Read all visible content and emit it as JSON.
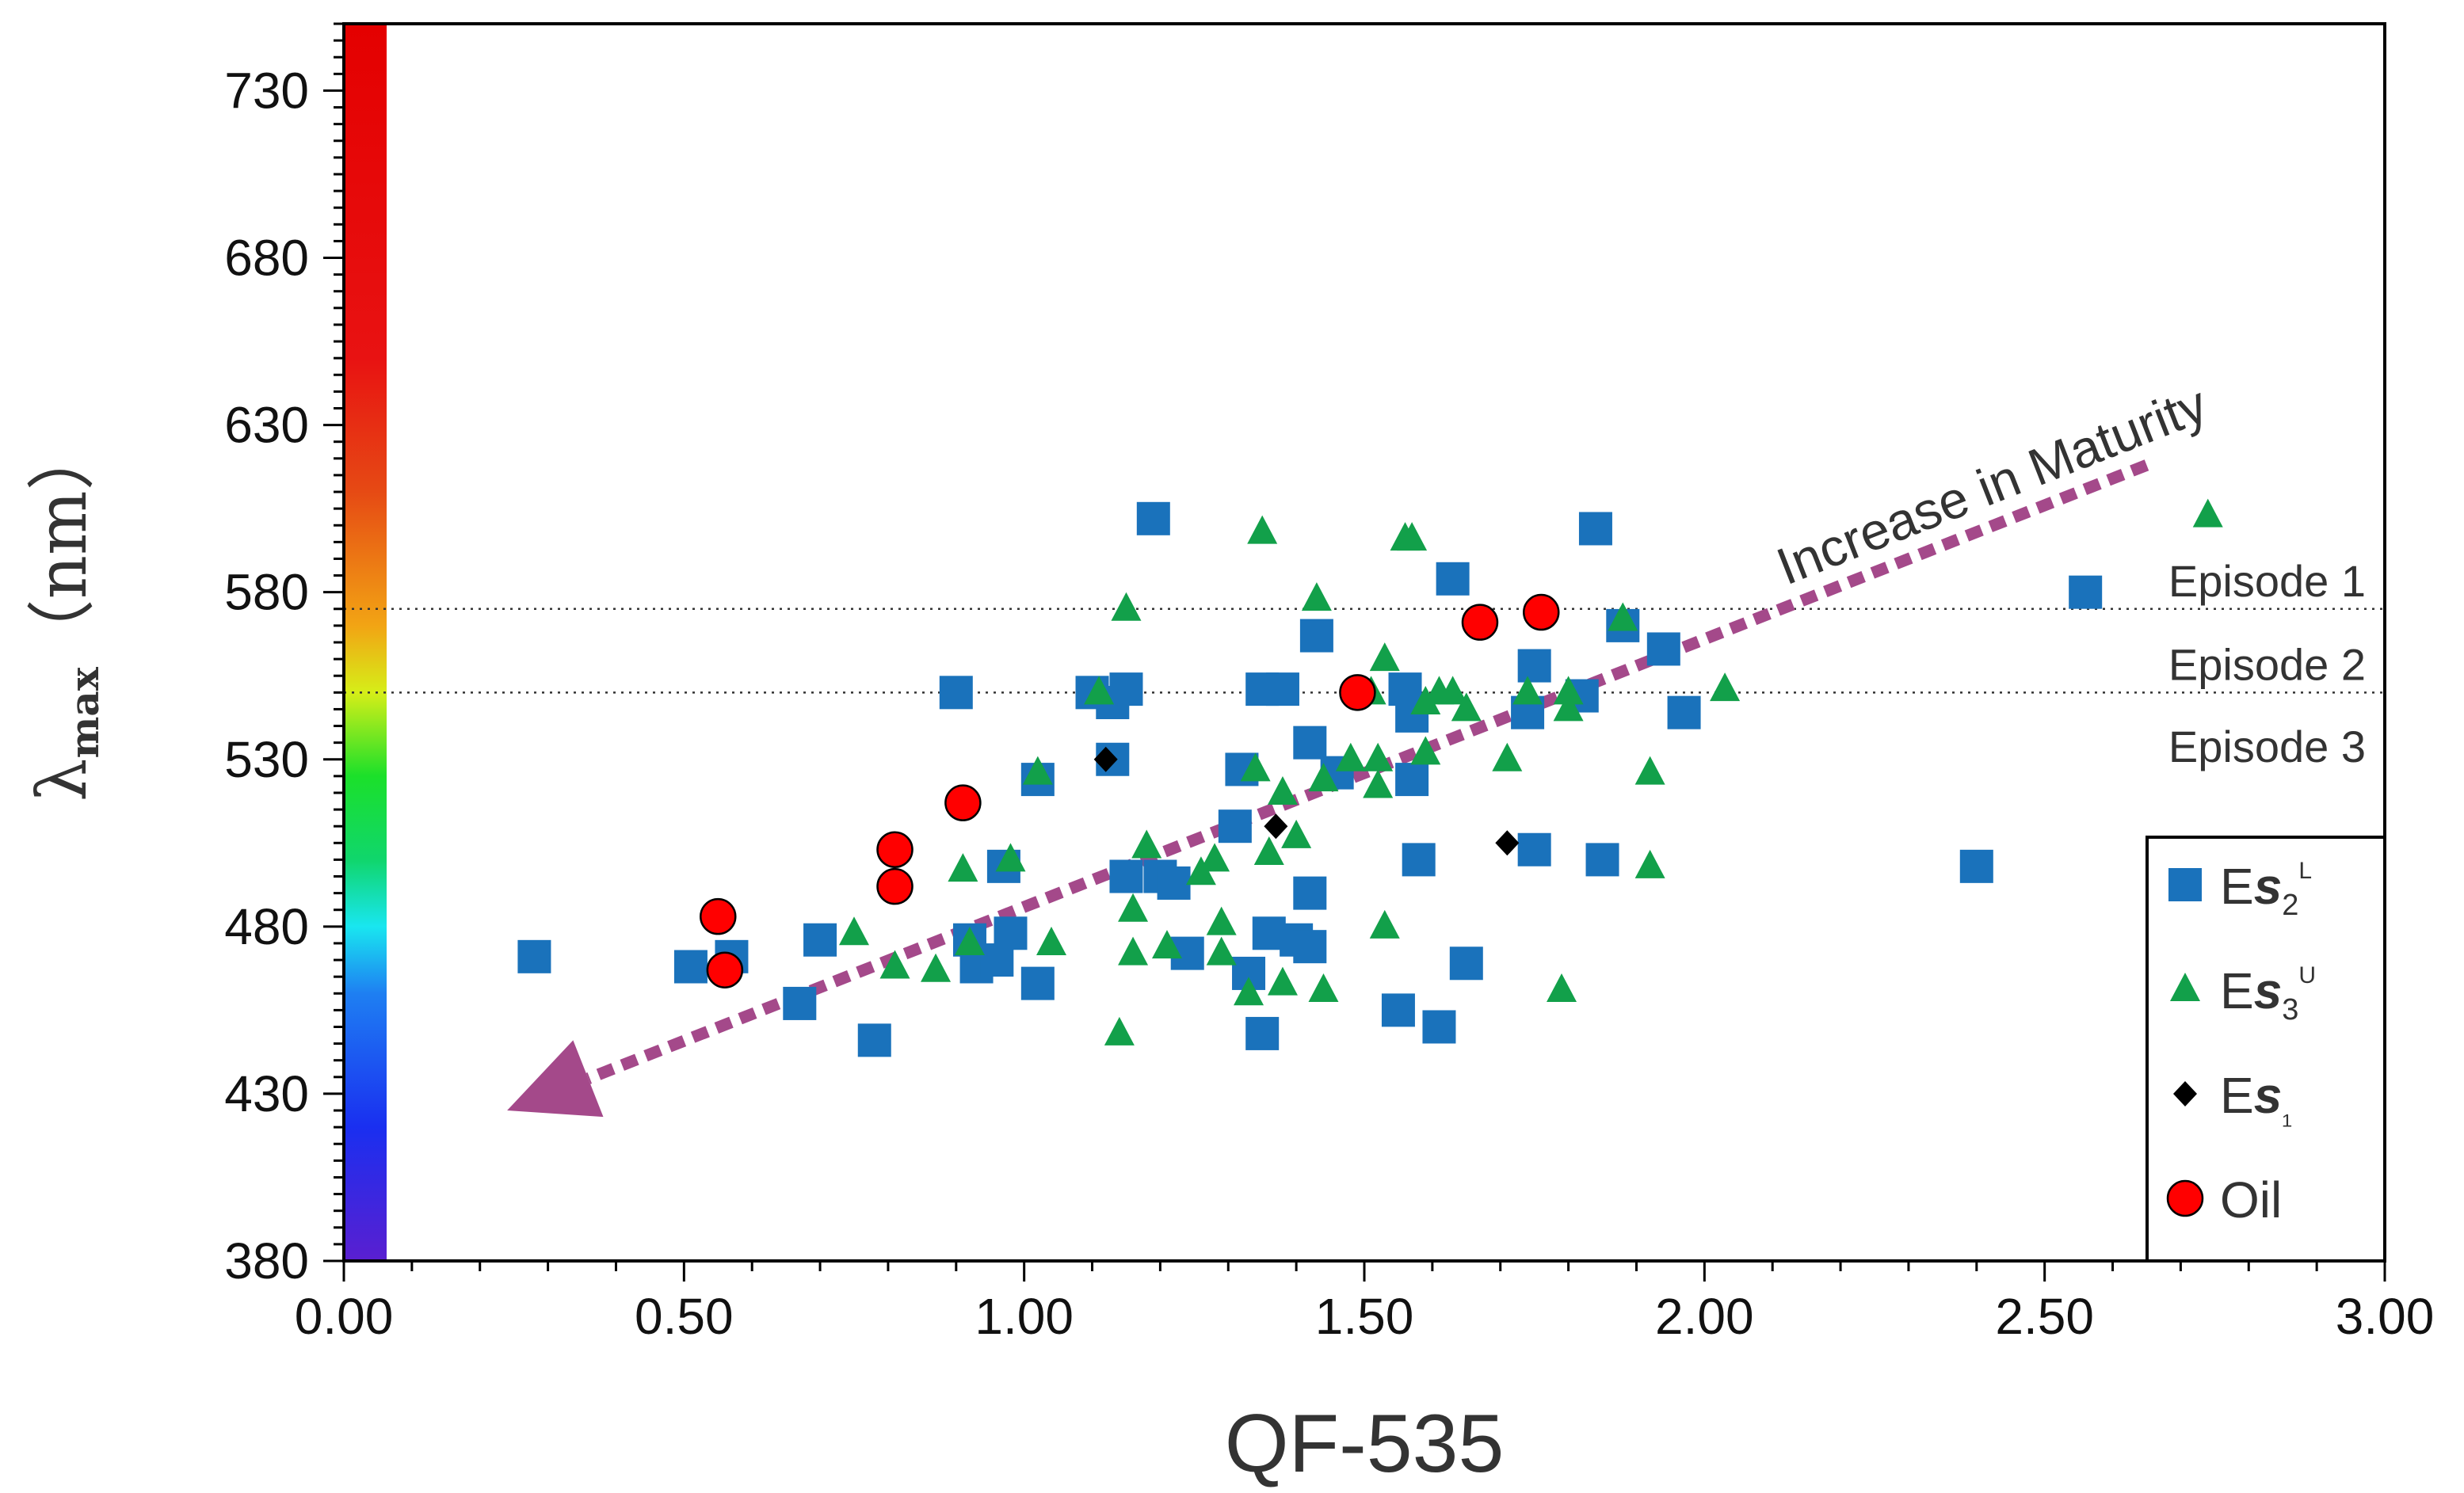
{
  "chart_data": {
    "type": "scatter",
    "title": "",
    "xlabel": "QF-535",
    "ylabel": {
      "lambda": "λ",
      "sub": "max",
      "unit": "（nm）"
    },
    "xlim": [
      0.0,
      3.0
    ],
    "ylim": [
      380,
      750
    ],
    "x_ticks": [
      "0.00",
      "0.50",
      "1.00",
      "1.50",
      "2.00",
      "2.50",
      "3.00"
    ],
    "x_tick_values": [
      0.0,
      0.5,
      1.0,
      1.5,
      2.0,
      2.5,
      3.0
    ],
    "y_ticks": [
      "380",
      "430",
      "480",
      "530",
      "580",
      "630",
      "680",
      "730"
    ],
    "y_tick_values": [
      380,
      430,
      480,
      530,
      580,
      630,
      680,
      730
    ],
    "grid": false,
    "legend_position": "bottom-right",
    "color_bar": {
      "wavelength_range": [
        380,
        750
      ],
      "stops": [
        {
          "value": 380,
          "color": "#5a1fd0"
        },
        {
          "value": 420,
          "color": "#1a2ff0"
        },
        {
          "value": 460,
          "color": "#1e7ff2"
        },
        {
          "value": 480,
          "color": "#19e6f0"
        },
        {
          "value": 500,
          "color": "#10d66c"
        },
        {
          "value": 525,
          "color": "#1be02a"
        },
        {
          "value": 550,
          "color": "#d6ee18"
        },
        {
          "value": 570,
          "color": "#f2a414"
        },
        {
          "value": 610,
          "color": "#e64a14"
        },
        {
          "value": 650,
          "color": "#e81212"
        },
        {
          "value": 750,
          "color": "#e40000"
        }
      ]
    },
    "reference_lines": [
      {
        "y": 575,
        "label": "Episode 1"
      },
      {
        "y": 550,
        "label": "Episode 2"
      }
    ],
    "region_labels": [
      {
        "text": "Episode 3",
        "y": 534
      }
    ],
    "annotation": {
      "text": "Increase in  Maturity",
      "arrow_from": [
        2.65,
        618
      ],
      "arrow_to": [
        0.24,
        425
      ],
      "color": "#a4498a"
    },
    "series": [
      {
        "name": "Es2L",
        "legend": {
          "base": "E",
          "italic": "s",
          "sub": "2",
          "sup": "L"
        },
        "marker": "square",
        "color": "#1a72bb",
        "points": [
          [
            0.28,
            471
          ],
          [
            0.51,
            468
          ],
          [
            0.57,
            471
          ],
          [
            0.67,
            457
          ],
          [
            0.7,
            476
          ],
          [
            0.78,
            446
          ],
          [
            0.9,
            550
          ],
          [
            0.92,
            476
          ],
          [
            0.93,
            468
          ],
          [
            0.96,
            470
          ],
          [
            0.97,
            498
          ],
          [
            0.98,
            478
          ],
          [
            1.02,
            463
          ],
          [
            1.02,
            524
          ],
          [
            1.1,
            550
          ],
          [
            1.13,
            547
          ],
          [
            1.13,
            530
          ],
          [
            1.15,
            551
          ],
          [
            1.15,
            495
          ],
          [
            1.19,
            602
          ],
          [
            1.2,
            495
          ],
          [
            1.22,
            493
          ],
          [
            1.24,
            472
          ],
          [
            1.31,
            510
          ],
          [
            1.32,
            527
          ],
          [
            1.33,
            466
          ],
          [
            1.35,
            448
          ],
          [
            1.35,
            551
          ],
          [
            1.36,
            478
          ],
          [
            1.38,
            551
          ],
          [
            1.4,
            476
          ],
          [
            1.42,
            474
          ],
          [
            1.42,
            490
          ],
          [
            1.42,
            535
          ],
          [
            1.43,
            567
          ],
          [
            1.46,
            526
          ],
          [
            1.55,
            455
          ],
          [
            1.56,
            551
          ],
          [
            1.57,
            543
          ],
          [
            1.57,
            524
          ],
          [
            1.58,
            500
          ],
          [
            1.61,
            450
          ],
          [
            1.63,
            584
          ],
          [
            1.65,
            469
          ],
          [
            1.74,
            544
          ],
          [
            1.75,
            503
          ],
          [
            1.75,
            558
          ],
          [
            1.82,
            549
          ],
          [
            1.84,
            599
          ],
          [
            1.85,
            500
          ],
          [
            1.88,
            570
          ],
          [
            1.94,
            563
          ],
          [
            1.97,
            544
          ],
          [
            2.4,
            498
          ],
          [
            2.56,
            580
          ]
        ]
      },
      {
        "name": "Es3U",
        "legend": {
          "base": "E",
          "italic": "s",
          "sub": "3",
          "sup": "U"
        },
        "marker": "triangle",
        "color": "#12a04a",
        "points": [
          [
            0.75,
            478
          ],
          [
            0.81,
            468
          ],
          [
            0.87,
            467
          ],
          [
            0.91,
            497
          ],
          [
            0.92,
            475
          ],
          [
            0.98,
            500
          ],
          [
            1.02,
            526
          ],
          [
            1.04,
            475
          ],
          [
            1.11,
            550
          ],
          [
            1.14,
            448
          ],
          [
            1.15,
            575
          ],
          [
            1.16,
            472
          ],
          [
            1.16,
            485
          ],
          [
            1.18,
            504
          ],
          [
            1.21,
            474
          ],
          [
            1.26,
            496
          ],
          [
            1.28,
            500
          ],
          [
            1.29,
            481
          ],
          [
            1.29,
            472
          ],
          [
            1.33,
            460
          ],
          [
            1.34,
            527
          ],
          [
            1.35,
            598
          ],
          [
            1.36,
            502
          ],
          [
            1.38,
            520
          ],
          [
            1.38,
            463
          ],
          [
            1.4,
            507
          ],
          [
            1.43,
            578
          ],
          [
            1.44,
            461
          ],
          [
            1.44,
            524
          ],
          [
            1.48,
            530
          ],
          [
            1.51,
            550
          ],
          [
            1.52,
            522
          ],
          [
            1.52,
            530
          ],
          [
            1.53,
            480
          ],
          [
            1.53,
            560
          ],
          [
            1.56,
            596
          ],
          [
            1.57,
            596
          ],
          [
            1.59,
            532
          ],
          [
            1.59,
            547
          ],
          [
            1.61,
            550
          ],
          [
            1.63,
            550
          ],
          [
            1.65,
            545
          ],
          [
            1.71,
            530
          ],
          [
            1.74,
            550
          ],
          [
            1.79,
            461
          ],
          [
            1.8,
            550
          ],
          [
            1.8,
            545
          ],
          [
            1.88,
            572
          ],
          [
            1.92,
            526
          ],
          [
            1.92,
            498
          ],
          [
            2.03,
            551
          ],
          [
            2.74,
            603
          ]
        ]
      },
      {
        "name": "Es1",
        "legend": {
          "base": "E",
          "italic": "s",
          "sub": "₁",
          "sup": ""
        },
        "marker": "diamond",
        "color": "#000000",
        "points": [
          [
            1.12,
            530
          ],
          [
            1.37,
            510
          ],
          [
            1.71,
            505
          ]
        ]
      },
      {
        "name": "Oil",
        "legend": {
          "base": "Oil",
          "italic": "",
          "sub": "",
          "sup": ""
        },
        "marker": "circle",
        "color": "#ff0000",
        "points": [
          [
            0.55,
            483
          ],
          [
            0.56,
            467
          ],
          [
            0.81,
            492
          ],
          [
            0.81,
            503
          ],
          [
            0.91,
            517
          ],
          [
            1.49,
            550
          ],
          [
            1.67,
            571
          ],
          [
            1.76,
            574
          ]
        ]
      }
    ]
  }
}
